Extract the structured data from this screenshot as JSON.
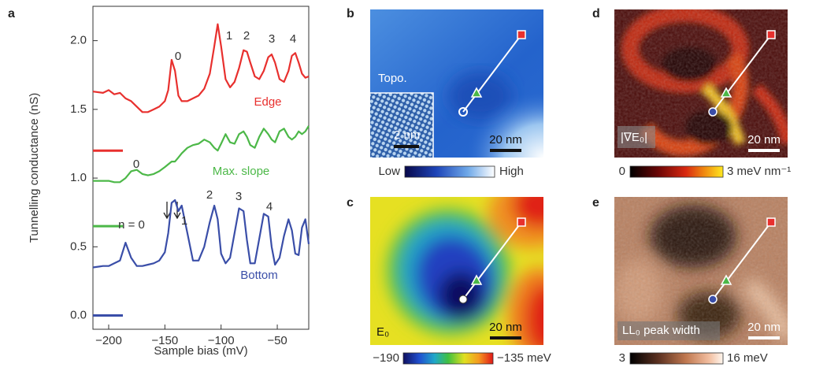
{
  "chart_data": {
    "type": "line",
    "label": "a",
    "xlabel": "Sample bias (mV)",
    "ylabel": "Tunnelling conductance (nS)",
    "xlim": [
      -214,
      -22
    ],
    "ylim": [
      -0.1,
      2.25
    ],
    "xticks": [
      {
        "value": -200,
        "label": "−200"
      },
      {
        "value": -150,
        "label": "−150"
      },
      {
        "value": -100,
        "label": "−100"
      },
      {
        "value": -50,
        "label": "−50"
      }
    ],
    "yticks": [
      {
        "value": 0,
        "label": "0.0"
      },
      0.5,
      {
        "value": 1,
        "label": "1.0"
      },
      1.5,
      {
        "value": 2,
        "label": "2.0"
      }
    ],
    "x": [
      -214,
      -205,
      -200,
      -195,
      -190,
      -185,
      -180,
      -175,
      -170,
      -165,
      -160,
      -155,
      -150,
      -147,
      -144,
      -141,
      -138,
      -135,
      -130,
      -125,
      -120,
      -115,
      -110,
      -106,
      -103,
      -100,
      -96,
      -92,
      -88,
      -84,
      -80,
      -77,
      -74,
      -70,
      -66,
      -62,
      -58,
      -55,
      -52,
      -48,
      -44,
      -40,
      -37,
      -34,
      -31,
      -28,
      -25,
      -22
    ],
    "series": [
      {
        "name": "Edge",
        "color": "#e8302e",
        "baseline": 1.2,
        "values": [
          1.63,
          1.62,
          1.64,
          1.61,
          1.62,
          1.58,
          1.56,
          1.52,
          1.48,
          1.48,
          1.5,
          1.52,
          1.56,
          1.64,
          1.86,
          1.78,
          1.6,
          1.56,
          1.56,
          1.58,
          1.6,
          1.65,
          1.76,
          1.96,
          2.12,
          1.96,
          1.72,
          1.66,
          1.7,
          1.8,
          1.93,
          1.92,
          1.84,
          1.74,
          1.72,
          1.78,
          1.88,
          1.9,
          1.84,
          1.72,
          1.7,
          1.78,
          1.89,
          1.91,
          1.84,
          1.76,
          1.73,
          1.74
        ]
      },
      {
        "name": "Max. slope",
        "color": "#4cb848",
        "baseline": 0.65,
        "values": [
          0.98,
          0.98,
          0.98,
          0.97,
          0.97,
          1.0,
          1.05,
          1.06,
          1.03,
          1.02,
          1.03,
          1.05,
          1.08,
          1.1,
          1.12,
          1.12,
          1.15,
          1.18,
          1.22,
          1.24,
          1.25,
          1.28,
          1.26,
          1.22,
          1.2,
          1.25,
          1.32,
          1.26,
          1.25,
          1.32,
          1.34,
          1.3,
          1.24,
          1.22,
          1.3,
          1.36,
          1.32,
          1.28,
          1.26,
          1.34,
          1.36,
          1.3,
          1.28,
          1.3,
          1.34,
          1.32,
          1.34,
          1.38
        ]
      },
      {
        "name": "Bottom",
        "color": "#3a4ea8",
        "baseline": 0,
        "values": [
          0.35,
          0.36,
          0.36,
          0.38,
          0.4,
          0.53,
          0.42,
          0.36,
          0.36,
          0.37,
          0.38,
          0.4,
          0.46,
          0.6,
          0.82,
          0.84,
          0.76,
          0.8,
          0.6,
          0.4,
          0.4,
          0.5,
          0.68,
          0.8,
          0.7,
          0.45,
          0.38,
          0.42,
          0.6,
          0.78,
          0.76,
          0.55,
          0.38,
          0.38,
          0.56,
          0.74,
          0.72,
          0.5,
          0.37,
          0.42,
          0.58,
          0.7,
          0.62,
          0.45,
          0.44,
          0.64,
          0.7,
          0.52
        ]
      }
    ],
    "annotations": [
      {
        "text": "0",
        "color": "#333"
      },
      {
        "text": "1",
        "color": "#333"
      },
      {
        "text": "2",
        "color": "#333"
      },
      {
        "text": "3",
        "color": "#333"
      },
      {
        "text": "4",
        "color": "#333"
      },
      {
        "text": "Edge",
        "color": "#e8302e"
      },
      {
        "text": "0",
        "color": "#333"
      },
      {
        "text": "Max. slope",
        "color": "#4cb848"
      },
      {
        "text": "n = 0",
        "color": "#333"
      },
      {
        "text": "1",
        "color": "#333"
      },
      {
        "text": "2",
        "color": "#333"
      },
      {
        "text": "3",
        "color": "#333"
      },
      {
        "text": "4",
        "color": "#333"
      },
      {
        "text": "Bottom",
        "color": "#3a4ea8"
      }
    ]
  },
  "images": [
    {
      "label": "b",
      "overlay": "Topo.",
      "scale_bar": "20 nm",
      "inset_scale_bar": "2 nm",
      "colorbar": [
        "Low",
        "High"
      ]
    },
    {
      "label": "c",
      "overlay": "E₀",
      "scale_bar": "20 nm",
      "colorbar": [
        "−190",
        "−135 meV"
      ]
    },
    {
      "label": "d",
      "overlay": "|∇E₀|",
      "scale_bar": "20 nm",
      "colorbar": [
        "0",
        "3 meV nm⁻¹"
      ]
    },
    {
      "label": "e",
      "overlay": "LL₀ peak width",
      "scale_bar": "20 nm",
      "colorbar": [
        "3",
        "16 meV"
      ]
    }
  ]
}
